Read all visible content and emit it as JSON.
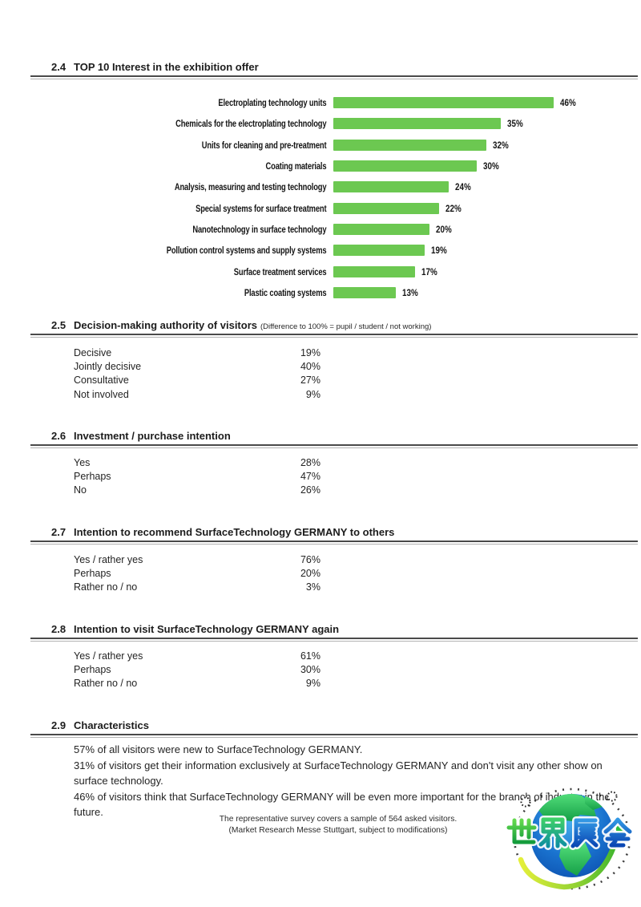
{
  "sections": {
    "s24": {
      "number": "2.4",
      "title": "TOP 10 Interest in the exhibition offer"
    },
    "s25": {
      "number": "2.5",
      "title": "Decision-making authority of visitors",
      "note": "(Difference to 100% = pupil / student / not working)",
      "rows": [
        {
          "label": "Decisive",
          "value": "19%"
        },
        {
          "label": "Jointly decisive",
          "value": "40%"
        },
        {
          "label": "Consultative",
          "value": "27%"
        },
        {
          "label": "Not involved",
          "value": "9%"
        }
      ]
    },
    "s26": {
      "number": "2.6",
      "title": "Investment / purchase intention",
      "rows": [
        {
          "label": "Yes",
          "value": "28%"
        },
        {
          "label": "Perhaps",
          "value": "47%"
        },
        {
          "label": "No",
          "value": "26%"
        }
      ]
    },
    "s27": {
      "number": "2.7",
      "title": "Intention to recommend SurfaceTechnology GERMANY to others",
      "rows": [
        {
          "label": "Yes / rather yes",
          "value": "76%"
        },
        {
          "label": "Perhaps",
          "value": "20%"
        },
        {
          "label": "Rather no / no",
          "value": "3%"
        }
      ]
    },
    "s28": {
      "number": "2.8",
      "title": "Intention to visit SurfaceTechnology GERMANY again",
      "rows": [
        {
          "label": "Yes / rather yes",
          "value": "61%"
        },
        {
          "label": "Perhaps",
          "value": "30%"
        },
        {
          "label": "Rather no / no",
          "value": "9%"
        }
      ]
    },
    "s29": {
      "number": "2.9",
      "title": "Characteristics",
      "paragraphs": [
        "57% of all visitors were new to SurfaceTechnology GERMANY.",
        "31% of visitors get their information exclusively at SurfaceTechnology GERMANY and don't visit any other show on surface technology.",
        "46% of visitors think that SurfaceTechnology GERMANY will be even more important for the branch of industry in the future."
      ]
    }
  },
  "chart_data": {
    "type": "bar",
    "orientation": "horizontal",
    "title": "TOP 10 Interest in the exhibition offer",
    "categories": [
      "Electroplating technology units",
      "Chemicals for the electroplating technology",
      "Units for cleaning and pre-treatment",
      "Coating materials",
      "Analysis, measuring and testing technology",
      "Special systems for surface treatment",
      "Nanotechnology in surface technology",
      "Pollution control systems and supply systems",
      "Surface treatment services",
      "Plastic coating systems"
    ],
    "values": [
      46,
      35,
      32,
      30,
      24,
      22,
      20,
      19,
      17,
      13
    ],
    "unit": "%",
    "xlim": [
      0,
      50
    ],
    "bar_color": "#6cc851",
    "data_labels": true,
    "grid": false,
    "legend": false
  },
  "footnote": {
    "line1": "The representative survey covers a sample of 564 asked visitors.",
    "line2": "(Market Research Messe Stuttgart, subject to modifications)"
  },
  "watermark": {
    "text": "世界展会"
  }
}
